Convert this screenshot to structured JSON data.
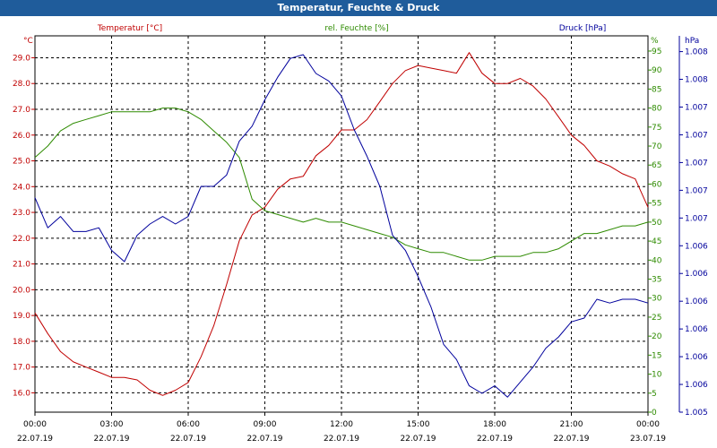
{
  "title": "Temperatur, Feuchte & Druck",
  "colors": {
    "temperature": "#c00000",
    "humidity": "#2e8b00",
    "pressure": "#00009c",
    "titlebar": "#1f5c9b"
  },
  "chart_data": {
    "type": "line",
    "title": "Temperatur, Feuchte & Druck",
    "x_ticks": [
      {
        "time": "00:00",
        "date": "22.07.19",
        "hour": 0
      },
      {
        "time": "03:00",
        "date": "22.07.19",
        "hour": 3
      },
      {
        "time": "06:00",
        "date": "22.07.19",
        "hour": 6
      },
      {
        "time": "09:00",
        "date": "22.07.19",
        "hour": 9
      },
      {
        "time": "12:00",
        "date": "22.07.19",
        "hour": 12
      },
      {
        "time": "15:00",
        "date": "22.07.19",
        "hour": 15
      },
      {
        "time": "18:00",
        "date": "22.07.19",
        "hour": 18
      },
      {
        "time": "21:00",
        "date": "22.07.19",
        "hour": 21
      },
      {
        "time": "00:00",
        "date": "23.07.19",
        "hour": 24
      }
    ],
    "xlim": [
      0,
      24
    ],
    "axes": {
      "temperature": {
        "series_label": "Temperatur [°C]",
        "unit": "°C",
        "ylim": [
          15.25,
          29.85
        ],
        "ticks": [
          "16.0",
          "17.0",
          "18.0",
          "19.0",
          "20.0",
          "21.0",
          "22.0",
          "23.0",
          "24.0",
          "25.0",
          "26.0",
          "27.0",
          "28.0",
          "29.0"
        ],
        "tick_values": [
          16,
          17,
          18,
          19,
          20,
          21,
          22,
          23,
          24,
          25,
          26,
          27,
          28,
          29
        ]
      },
      "humidity": {
        "series_label": "rel. Feuchte [%]",
        "unit": "%",
        "ylim": [
          0,
          99
        ],
        "ticks": [
          "0",
          "5",
          "10",
          "15",
          "20",
          "25",
          "30",
          "35",
          "40",
          "45",
          "50",
          "55",
          "60",
          "65",
          "70",
          "75",
          "80",
          "85",
          "90",
          "95"
        ],
        "tick_values": [
          0,
          5,
          10,
          15,
          20,
          25,
          30,
          35,
          40,
          45,
          50,
          55,
          60,
          65,
          70,
          75,
          80,
          85,
          90,
          95
        ]
      },
      "pressure": {
        "series_label": "Druck [hPa]",
        "unit": "hPa",
        "ylim": [
          0,
          100
        ],
        "ticks": [
          "1.005",
          "1.006",
          "1.006",
          "1.006",
          "1.006",
          "1.006",
          "1.006",
          "1.007",
          "1.007",
          "1.007",
          "1.007",
          "1.007",
          "1.008",
          "1.008"
        ],
        "tick_values": [
          0,
          7.37,
          14.74,
          22.11,
          29.48,
          36.85,
          44.22,
          51.59,
          58.96,
          66.33,
          73.7,
          81.07,
          88.44,
          95.81
        ]
      }
    },
    "series": [
      {
        "name": "Temperatur [°C]",
        "axis": "temperature",
        "color": "#c00000",
        "x": [
          0,
          0.5,
          1,
          1.5,
          2,
          2.5,
          3,
          3.5,
          4,
          4.5,
          5,
          5.5,
          6,
          6.5,
          7,
          7.5,
          8,
          8.5,
          9,
          9.5,
          10,
          10.5,
          11,
          11.5,
          12,
          12.5,
          13,
          13.5,
          14,
          14.5,
          15,
          15.5,
          16,
          16.5,
          17,
          17.5,
          18,
          18.5,
          19,
          19.5,
          20,
          20.5,
          21,
          21.5,
          22,
          22.5,
          23,
          23.5,
          24
        ],
        "values": [
          19.1,
          18.3,
          17.6,
          17.2,
          17.0,
          16.8,
          16.6,
          16.6,
          16.5,
          16.1,
          15.9,
          16.1,
          16.4,
          17.4,
          18.6,
          20.2,
          21.9,
          22.9,
          23.2,
          23.9,
          24.3,
          24.4,
          25.2,
          25.6,
          26.2,
          26.2,
          26.6,
          27.3,
          28.0,
          28.5,
          28.7,
          28.6,
          28.5,
          28.4,
          29.2,
          28.4,
          28.0,
          28.0,
          28.2,
          27.9,
          27.4,
          26.7,
          26.0,
          25.6,
          25.0,
          24.8,
          24.5,
          24.3,
          23.2
        ]
      },
      {
        "name": "rel. Feuchte [%]",
        "axis": "humidity",
        "color": "#2e8b00",
        "x": [
          0,
          0.5,
          1,
          1.5,
          2,
          2.5,
          3,
          3.5,
          4,
          4.5,
          5,
          5.5,
          6,
          6.5,
          7,
          7.5,
          8,
          8.5,
          9,
          9.5,
          10,
          10.5,
          11,
          11.5,
          12,
          12.5,
          13,
          13.5,
          14,
          14.5,
          15,
          15.5,
          16,
          16.5,
          17,
          17.5,
          18,
          18.5,
          19,
          19.5,
          20,
          20.5,
          21,
          21.5,
          22,
          22.5,
          23,
          23.5,
          24
        ],
        "values": [
          67,
          70,
          74,
          76,
          77,
          78,
          79,
          79,
          79,
          79,
          80,
          80,
          79,
          77,
          74,
          71,
          67,
          56,
          53,
          52,
          51,
          50,
          51,
          50,
          50,
          49,
          48,
          47,
          46,
          44,
          43,
          42,
          42,
          41,
          40,
          40,
          41,
          41,
          41,
          42,
          42,
          43,
          45,
          47,
          47,
          48,
          49,
          49,
          50
        ]
      },
      {
        "name": "Druck [hPa]",
        "axis": "pressure",
        "color": "#00009c",
        "x": [
          0,
          0.5,
          1,
          1.5,
          2,
          2.5,
          3,
          3.5,
          4,
          4.5,
          5,
          5.5,
          6,
          6.5,
          7,
          7.5,
          8,
          8.5,
          9,
          9.5,
          10,
          10.5,
          11,
          11.5,
          12,
          12.5,
          13,
          13.5,
          14,
          14.5,
          15,
          15.5,
          16,
          16.5,
          17,
          17.5,
          18,
          18.5,
          19,
          19.5,
          20,
          20.5,
          21,
          21.5,
          22,
          22.5,
          23,
          23.5,
          24
        ],
        "values": [
          57,
          49,
          52,
          48,
          48,
          49,
          43,
          40,
          47,
          50,
          52,
          50,
          52,
          60,
          60,
          63,
          72,
          76,
          83,
          89,
          94,
          95,
          90,
          88,
          84,
          75,
          68,
          60,
          47,
          43,
          36,
          28,
          18,
          14,
          7,
          5,
          7,
          4,
          8,
          12,
          17,
          20,
          24,
          25,
          30,
          29,
          30,
          30,
          29
        ]
      }
    ]
  }
}
